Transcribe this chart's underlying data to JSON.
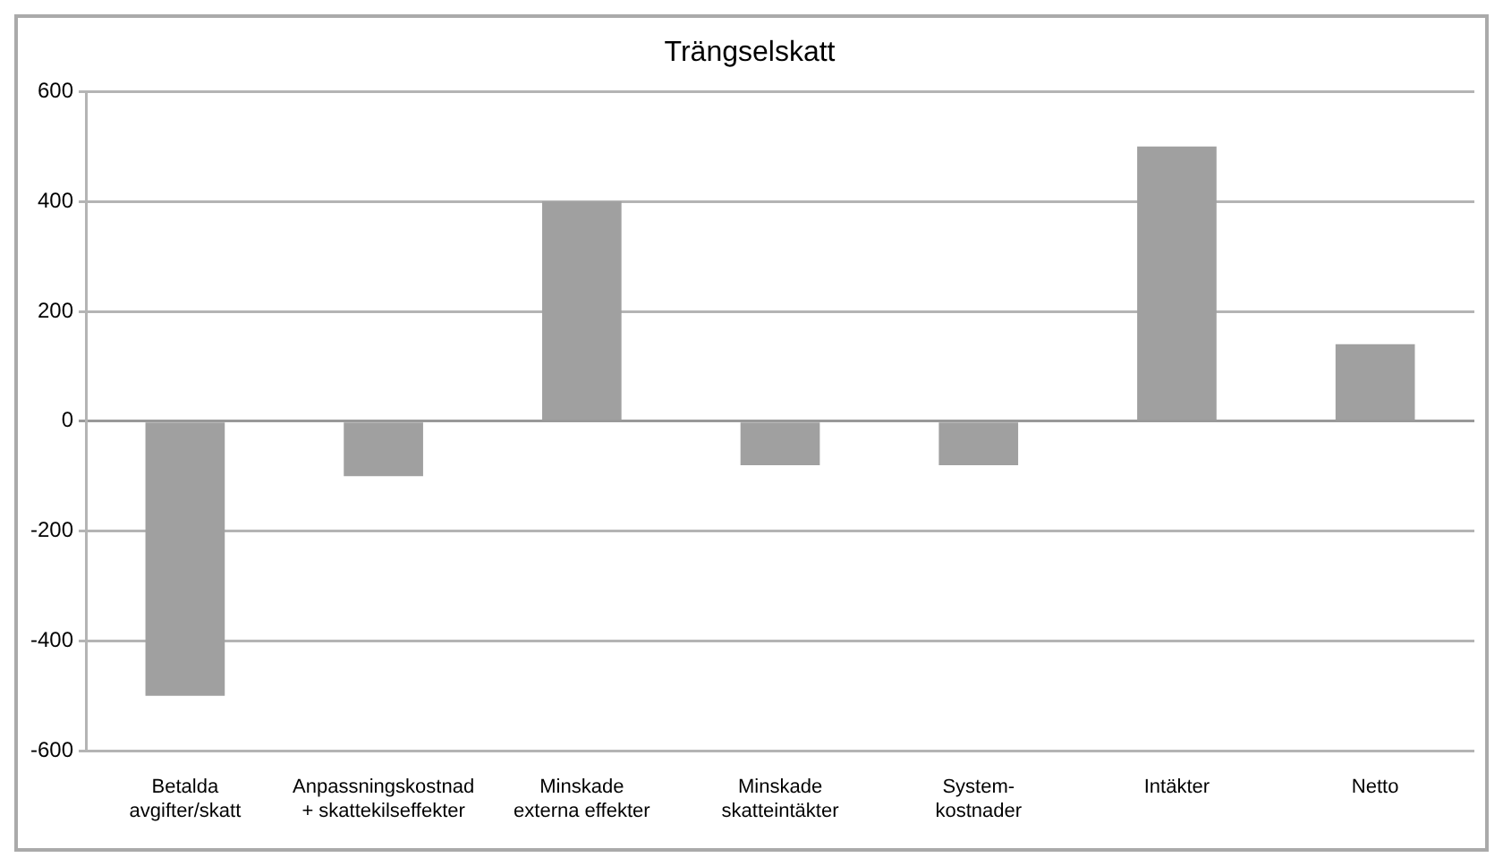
{
  "chart_data": {
    "type": "bar",
    "title": "Trängselskatt",
    "categories": [
      "Betalda avgifter/skatt",
      "Anpassningskostnad + skattekilseffekter",
      "Minskade externa effekter",
      "Minskade skatteintäkter",
      "System-kostnader",
      "Intäkter",
      "Netto"
    ],
    "values": [
      -500,
      -100,
      400,
      -80,
      -80,
      500,
      140
    ],
    "color": "#a0a0a0",
    "ylim": [
      -600,
      600
    ],
    "yticks": [
      -600,
      -400,
      -200,
      0,
      200,
      400,
      600
    ],
    "grid": "y",
    "legend": false
  }
}
